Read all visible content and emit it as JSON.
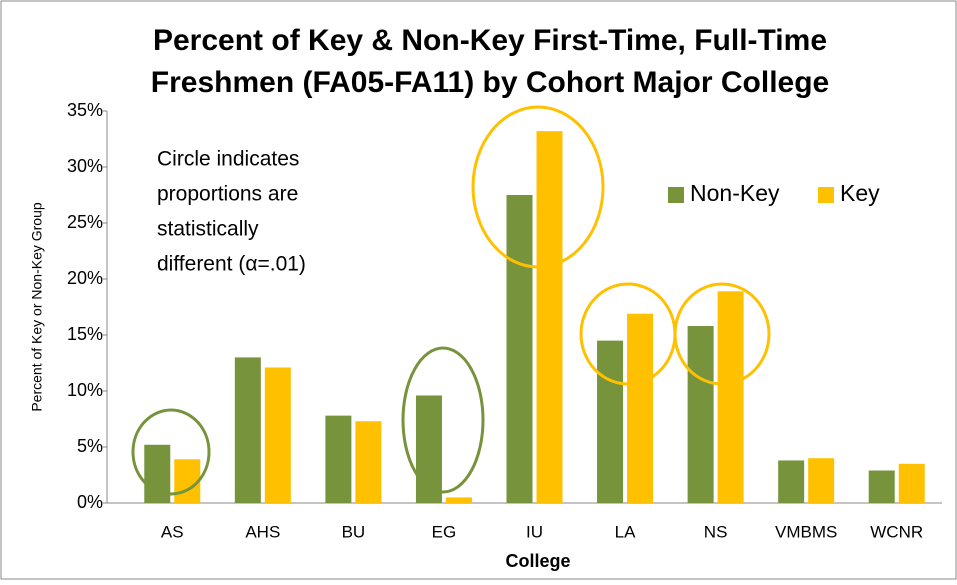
{
  "chart_data": {
    "type": "bar",
    "title": [
      "Percent of Key & Non-Key First-Time, Full-Time",
      "Freshmen (FA05-FA11) by Cohort Major College"
    ],
    "annotation": [
      "Circle indicates",
      "proportions are",
      "statistically",
      "different  (α=.01)"
    ],
    "x_label": "College",
    "y_label": "Percent of Key or Non-Key Group",
    "categories": [
      "AS",
      "AHS",
      "BU",
      "EG",
      "IU",
      "LA",
      "NS",
      "VMBMS",
      "WCNR"
    ],
    "series": [
      {
        "name": "Non-Key",
        "color": "#77933c",
        "values": [
          5.2,
          13.0,
          7.8,
          9.6,
          27.5,
          14.5,
          15.8,
          3.8,
          2.9
        ]
      },
      {
        "name": "Key",
        "color": "#ffc000",
        "values": [
          3.9,
          12.1,
          7.3,
          0.5,
          33.2,
          16.9,
          18.9,
          4.0,
          3.5
        ]
      }
    ],
    "ylim": [
      0,
      35
    ],
    "yticks": [
      {
        "value": 0,
        "label": "0%"
      },
      {
        "value": 5,
        "label": "5%"
      },
      {
        "value": 10,
        "label": "10%"
      },
      {
        "value": 15,
        "label": "15%"
      },
      {
        "value": 20,
        "label": "20%"
      },
      {
        "value": 25,
        "label": "25%"
      },
      {
        "value": 30,
        "label": "30%"
      },
      {
        "value": 35,
        "label": "35%"
      }
    ],
    "legend": "upper right"
  }
}
